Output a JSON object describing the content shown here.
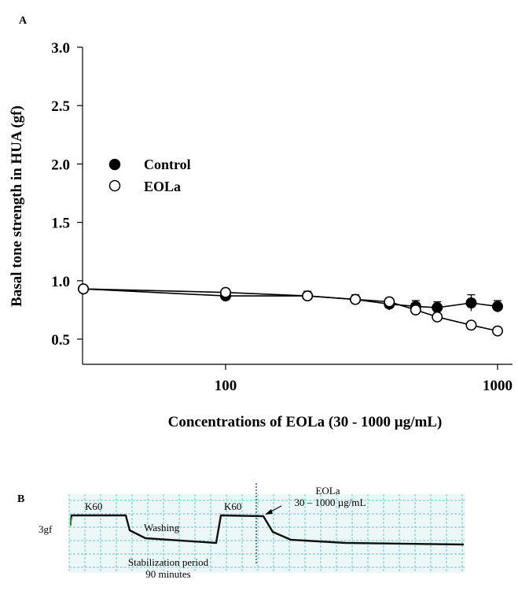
{
  "panel_a_label": "A",
  "panel_b_label": "B",
  "chart_data": {
    "type": "line",
    "xscale": "log",
    "xlim": [
      30,
      1050
    ],
    "ylim": [
      0.25,
      3.0
    ],
    "xticks": [
      100,
      1000
    ],
    "xtick_labels": [
      "100",
      "1000"
    ],
    "yticks": [
      0.5,
      1.0,
      1.5,
      2.0,
      2.5,
      3.0
    ],
    "ytick_labels": [
      "0.5",
      "1.0",
      "1.5",
      "2.0",
      "2.5",
      "3.0"
    ],
    "xlabel": "Concentrations of EOLa (30 - 1000 µg/mL)",
    "ylabel": "Basal tone strength in HUA (gf)",
    "legend_position": "upper-left",
    "grid": false,
    "series": [
      {
        "name": "Control",
        "marker": "filled-circle",
        "color": "#000000",
        "x": [
          30,
          100,
          200,
          300,
          400,
          500,
          600,
          800,
          1000
        ],
        "y": [
          0.93,
          0.87,
          0.87,
          0.84,
          0.8,
          0.78,
          0.77,
          0.81,
          0.78
        ],
        "err": [
          0.02,
          0.03,
          0.04,
          0.04,
          0.05,
          0.05,
          0.05,
          0.07,
          0.05
        ]
      },
      {
        "name": "EOLa",
        "marker": "open-circle",
        "color": "#000000",
        "x": [
          30,
          100,
          200,
          300,
          400,
          500,
          600,
          800,
          1000
        ],
        "y": [
          0.93,
          0.9,
          0.87,
          0.84,
          0.82,
          0.75,
          0.69,
          0.62,
          0.57
        ],
        "err": [
          0.02,
          0.03,
          0.03,
          0.03,
          0.03,
          0.03,
          0.03,
          0.03,
          0.03
        ]
      }
    ]
  },
  "trace": {
    "scale_label": "3gf",
    "k60_first": "K60",
    "k60_second": "K60",
    "washing": "Washing",
    "eola_line1": "EOLa",
    "eola_line2": "30 – 1000 µg/mL",
    "stab_line1": "Stabilization period",
    "stab_line2": "90 minutes",
    "background_color": "#ecf7f7",
    "grid_color": "#6fc7cf"
  }
}
